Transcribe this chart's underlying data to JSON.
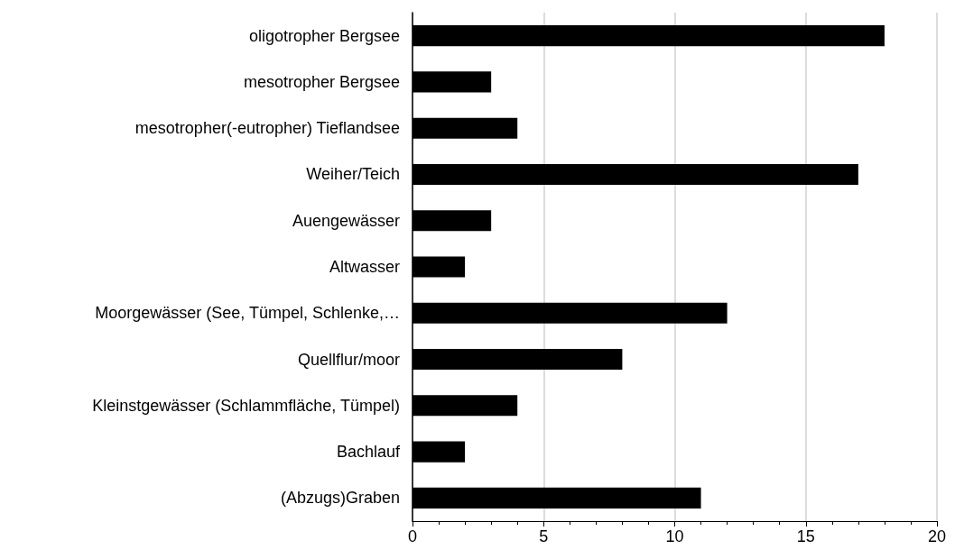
{
  "chart_data": {
    "type": "bar",
    "orientation": "horizontal",
    "categories": [
      "oligotropher Bergsee",
      "mesotropher Bergsee",
      "mesotropher(-eutropher) Tieflandsee",
      "Weiher/Teich",
      "Auengewässer",
      "Altwasser",
      "Moorgewässer (See, Tümpel, Schlenke,…",
      "Quellflur/moor",
      "Kleinstgewässer (Schlammfläche, Tümpel)",
      "Bachlauf",
      "(Abzugs)Graben"
    ],
    "values": [
      18,
      3,
      4,
      17,
      3,
      2,
      12,
      8,
      4,
      2,
      11
    ],
    "color": "#000000",
    "xlim": [
      0,
      20
    ],
    "xticks": [
      0,
      5,
      10,
      15,
      20
    ],
    "grid": "x"
  }
}
